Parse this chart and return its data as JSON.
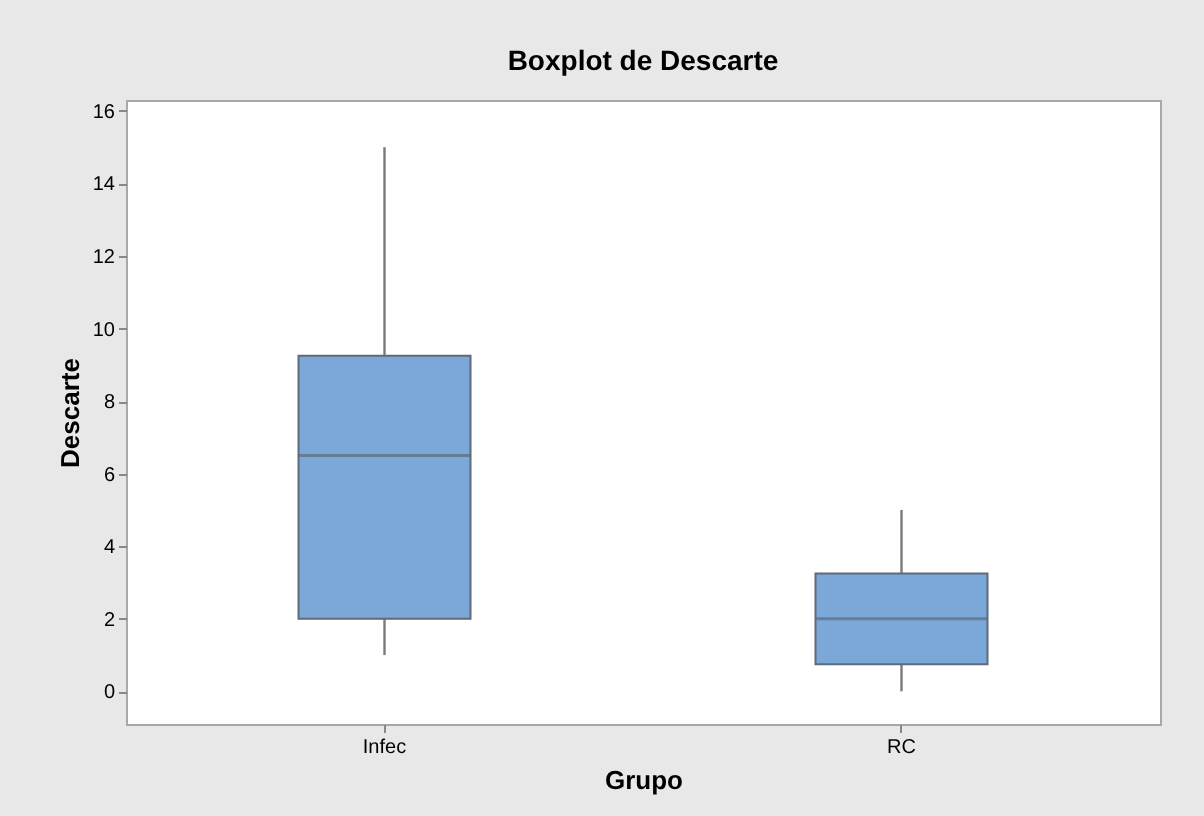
{
  "chart_data": {
    "type": "box",
    "title": "Boxplot de Descarte",
    "xlabel": "Grupo",
    "ylabel": "Descarte",
    "categories": [
      "Infec",
      "RC"
    ],
    "series": [
      {
        "color": "#7ba7d9",
        "boxes": [
          {
            "low": 1,
            "q1": 2,
            "median": 6.5,
            "q3": 9.25,
            "high": 15
          },
          {
            "low": 0,
            "q1": 0.75,
            "median": 2,
            "q3": 3.25,
            "high": 5
          }
        ]
      }
    ],
    "ylim": [
      -0.9,
      16.3
    ],
    "yticks": [
      0,
      2,
      4,
      6,
      8,
      10,
      12,
      14,
      16
    ]
  }
}
